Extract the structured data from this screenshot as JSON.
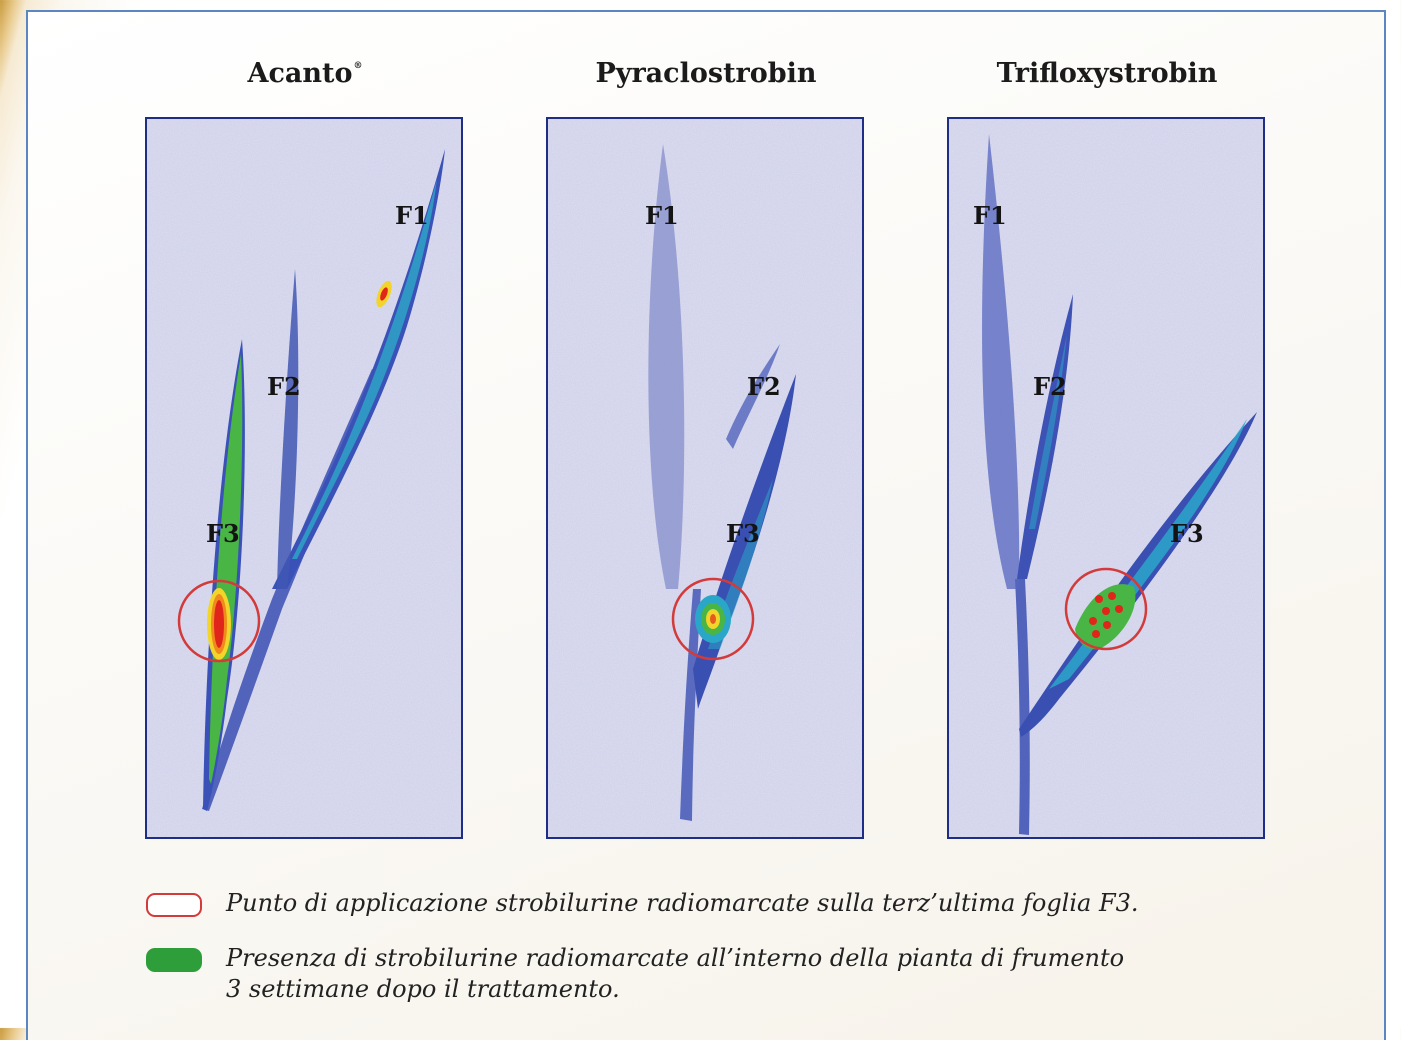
{
  "panels": [
    {
      "title": "Acanto",
      "trademark": "®",
      "labels": {
        "f1": "F1",
        "f2": "F2",
        "f3": "F3"
      }
    },
    {
      "title": "Pyraclostrobin",
      "labels": {
        "f1": "F1",
        "f2": "F2",
        "f3": "F3"
      }
    },
    {
      "title": "Trifloxystrobin",
      "labels": {
        "f1": "F1",
        "f2": "F2",
        "f3": "F3"
      }
    }
  ],
  "legend": {
    "application_point": "Punto di applicazione strobilurine radiomarcate sulla terz’ultima foglia F3.",
    "presence_line1": "Presenza di strobilurine radiomarcate all’interno della pianta di frumento",
    "presence_line2": "3 settimane dopo il trattamento."
  },
  "colors": {
    "frame_border": "#5b86c2",
    "panel_border": "#1e2e86",
    "panel_background": "#d9daee",
    "leaf_blue": "#3a4fb2",
    "leaf_cyan": "#2aa6c9",
    "presence_green": "#2e9e3a",
    "hotspot_red": "#e0261a",
    "hotspot_yellow": "#f2d42a",
    "application_circle": "#d33a3a"
  }
}
